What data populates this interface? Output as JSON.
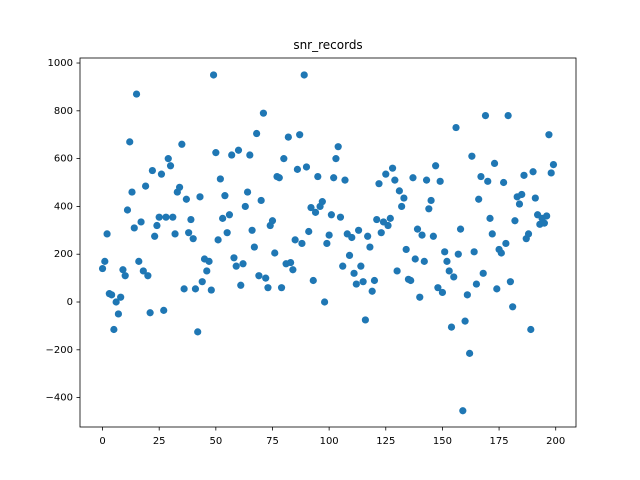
{
  "chart_data": {
    "type": "scatter",
    "title": "snr_records",
    "x": [
      0,
      1,
      2,
      3,
      4,
      5,
      6,
      7,
      8,
      9,
      10,
      11,
      12,
      13,
      14,
      15,
      16,
      17,
      18,
      19,
      20,
      21,
      22,
      23,
      24,
      25,
      26,
      27,
      28,
      29,
      30,
      31,
      32,
      33,
      34,
      35,
      36,
      37,
      38,
      39,
      40,
      41,
      42,
      43,
      44,
      45,
      46,
      47,
      48,
      49,
      50,
      51,
      52,
      53,
      54,
      55,
      56,
      57,
      58,
      59,
      60,
      61,
      62,
      63,
      64,
      65,
      66,
      67,
      68,
      69,
      70,
      71,
      72,
      73,
      74,
      75,
      76,
      77,
      78,
      79,
      80,
      81,
      82,
      83,
      84,
      85,
      86,
      87,
      88,
      89,
      90,
      91,
      92,
      93,
      94,
      95,
      96,
      97,
      98,
      99,
      100,
      101,
      102,
      103,
      104,
      105,
      106,
      107,
      108,
      109,
      110,
      111,
      112,
      113,
      114,
      115,
      116,
      117,
      118,
      119,
      120,
      121,
      122,
      123,
      124,
      125,
      126,
      127,
      128,
      129,
      130,
      131,
      132,
      133,
      134,
      135,
      136,
      137,
      138,
      139,
      140,
      141,
      142,
      143,
      144,
      145,
      146,
      147,
      148,
      149,
      150,
      151,
      152,
      153,
      154,
      155,
      156,
      157,
      158,
      159,
      160,
      161,
      162,
      163,
      164,
      165,
      166,
      167,
      168,
      169,
      170,
      171,
      172,
      173,
      174,
      175,
      176,
      177,
      178,
      179,
      180,
      181,
      182,
      183,
      184,
      185,
      186,
      187,
      188,
      189,
      190,
      191,
      192,
      193,
      194,
      195,
      196,
      197,
      198,
      199
    ],
    "values": [
      140,
      170,
      285,
      35,
      30,
      -115,
      0,
      -50,
      20,
      135,
      110,
      385,
      670,
      460,
      310,
      870,
      170,
      335,
      130,
      485,
      110,
      -45,
      550,
      275,
      320,
      355,
      535,
      -35,
      355,
      600,
      570,
      355,
      285,
      460,
      480,
      660,
      55,
      430,
      290,
      345,
      265,
      55,
      -125,
      440,
      85,
      180,
      130,
      170,
      50,
      950,
      625,
      260,
      515,
      350,
      445,
      290,
      365,
      615,
      185,
      150,
      635,
      70,
      160,
      400,
      460,
      615,
      300,
      230,
      705,
      110,
      425,
      790,
      100,
      60,
      320,
      340,
      205,
      525,
      520,
      60,
      600,
      160,
      690,
      165,
      135,
      260,
      555,
      700,
      245,
      950,
      565,
      295,
      395,
      90,
      375,
      525,
      400,
      420,
      0,
      245,
      280,
      365,
      520,
      600,
      650,
      355,
      150,
      510,
      285,
      195,
      270,
      120,
      75,
      300,
      150,
      85,
      -75,
      275,
      230,
      45,
      90,
      345,
      495,
      290,
      335,
      535,
      320,
      350,
      560,
      510,
      130,
      465,
      400,
      435,
      220,
      95,
      90,
      520,
      180,
      305,
      20,
      280,
      170,
      510,
      390,
      425,
      275,
      570,
      60,
      505,
      40,
      210,
      170,
      130,
      -105,
      105,
      730,
      200,
      305,
      -455,
      -80,
      30,
      -215,
      610,
      210,
      75,
      430,
      525,
      120,
      780,
      505,
      350,
      285,
      580,
      55,
      220,
      205,
      500,
      245,
      780,
      85,
      -20,
      340,
      440,
      410,
      450,
      530,
      265,
      285,
      -115,
      545,
      435,
      365,
      325,
      350,
      330,
      360,
      700,
      540,
      575
    ],
    "color": "#1f77b4",
    "xlim": [
      -9.95,
      208.95
    ],
    "xticks": [
      0,
      25,
      50,
      75,
      100,
      125,
      150,
      175,
      200
    ],
    "ylim": [
      -523,
      1021
    ],
    "yticks": [
      {
        "value": -400,
        "label": "−400"
      },
      {
        "value": -200,
        "label": "−200"
      },
      0,
      200,
      400,
      600,
      800,
      1000
    ],
    "grid": false
  }
}
